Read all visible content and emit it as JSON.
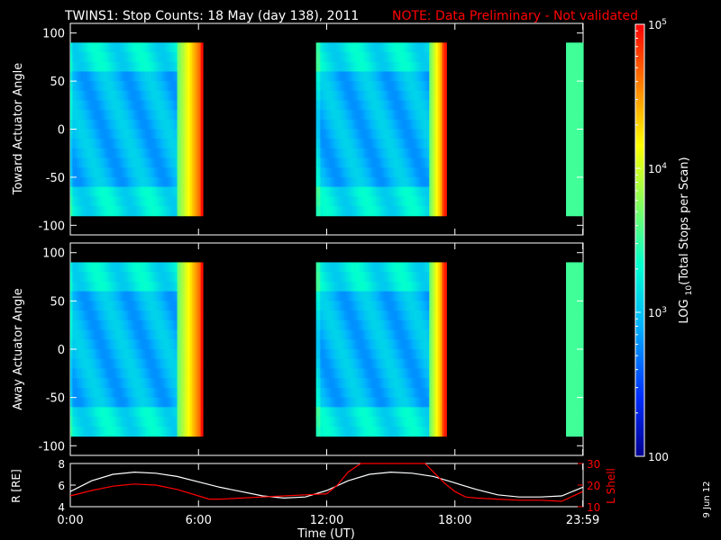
{
  "chart_data": {
    "type": "heatmap",
    "title": "TWINS1: Stop Counts: 18 May (day 138), 2011",
    "note": "NOTE: Data Preliminary - Not validated",
    "stamp": "9 Jun 12",
    "xlabel": "Time (UT)",
    "x_ticks": [
      "0:00",
      "6:00",
      "12:00",
      "18:00",
      "23:59"
    ],
    "x_tick_hours": [
      0,
      6,
      12,
      18,
      23.983
    ],
    "xlim": [
      0,
      24
    ],
    "panels": [
      {
        "ylabel": "Toward Actuator Angle",
        "ylim": [
          -110,
          110
        ],
        "yticks": [
          100,
          50,
          0,
          -50,
          -100
        ],
        "data_angle_range": [
          -90,
          90
        ],
        "data_hours": [
          [
            0,
            6.2
          ],
          [
            11.5,
            17.6
          ],
          [
            23.2,
            24
          ]
        ],
        "typical_log10_counts": [
          2.7,
          3.0,
          3.2,
          3.6,
          4.3,
          4.8
        ]
      },
      {
        "ylabel": "Away Actuator Angle",
        "ylim": [
          -110,
          110
        ],
        "yticks": [
          100,
          50,
          0,
          -50,
          -100
        ],
        "data_angle_range": [
          -90,
          90
        ],
        "data_hours": [
          [
            0,
            6.2
          ],
          [
            11.5,
            17.6
          ],
          [
            23.2,
            24
          ]
        ],
        "typical_log10_counts": [
          2.7,
          3.0,
          3.2,
          3.6,
          4.3,
          4.8
        ]
      }
    ],
    "colorbar": {
      "label": "LOG10(Total Stops per Scan)",
      "tick_labels": [
        "100",
        "10^3",
        "10^4",
        "10^5"
      ],
      "log10_range": [
        2,
        5
      ],
      "scale": "log",
      "colors": [
        "#000090",
        "#0030ff",
        "#00b0ff",
        "#00ffd0",
        "#80ff60",
        "#ffff00",
        "#ff8000",
        "#ff0000"
      ]
    },
    "orbit": {
      "left_label": "R [RE]",
      "right_label": "L Shell",
      "left_ylim": [
        4,
        8
      ],
      "left_yticks": [
        8,
        6,
        4
      ],
      "right_ylim": [
        10,
        30
      ],
      "right_yticks": [
        30,
        20,
        10
      ],
      "right_color": "#ff0000",
      "series": [
        {
          "name": "R [RE]",
          "color": "#ffffff",
          "x": [
            0,
            1,
            2,
            3,
            4,
            5,
            6,
            7,
            8,
            9,
            10,
            11,
            12,
            13,
            14,
            15,
            16,
            17,
            18,
            19,
            20,
            21,
            22,
            23,
            23.983
          ],
          "values": [
            5.4,
            6.4,
            7.0,
            7.2,
            7.1,
            6.8,
            6.3,
            5.8,
            5.4,
            5.0,
            4.8,
            4.9,
            5.5,
            6.4,
            7.0,
            7.2,
            7.1,
            6.8,
            6.2,
            5.6,
            5.1,
            4.9,
            4.9,
            5.0,
            5.8
          ]
        },
        {
          "name": "L Shell",
          "color": "#ff0000",
          "x": [
            0,
            1,
            2,
            3,
            4,
            5,
            6,
            6.5,
            7,
            8,
            9,
            10,
            11,
            12,
            12.5,
            13,
            13.6,
            16.6,
            17,
            17.5,
            18,
            18.5,
            19,
            20,
            21,
            22,
            23,
            23.983
          ],
          "values": [
            15,
            17.5,
            19.5,
            20.5,
            20,
            18,
            15,
            13.5,
            13.5,
            14,
            14.5,
            15,
            15.5,
            16,
            20,
            26,
            32,
            32,
            26,
            21,
            17,
            14.5,
            14,
            13.5,
            13,
            13,
            12.5,
            17
          ]
        }
      ]
    }
  }
}
